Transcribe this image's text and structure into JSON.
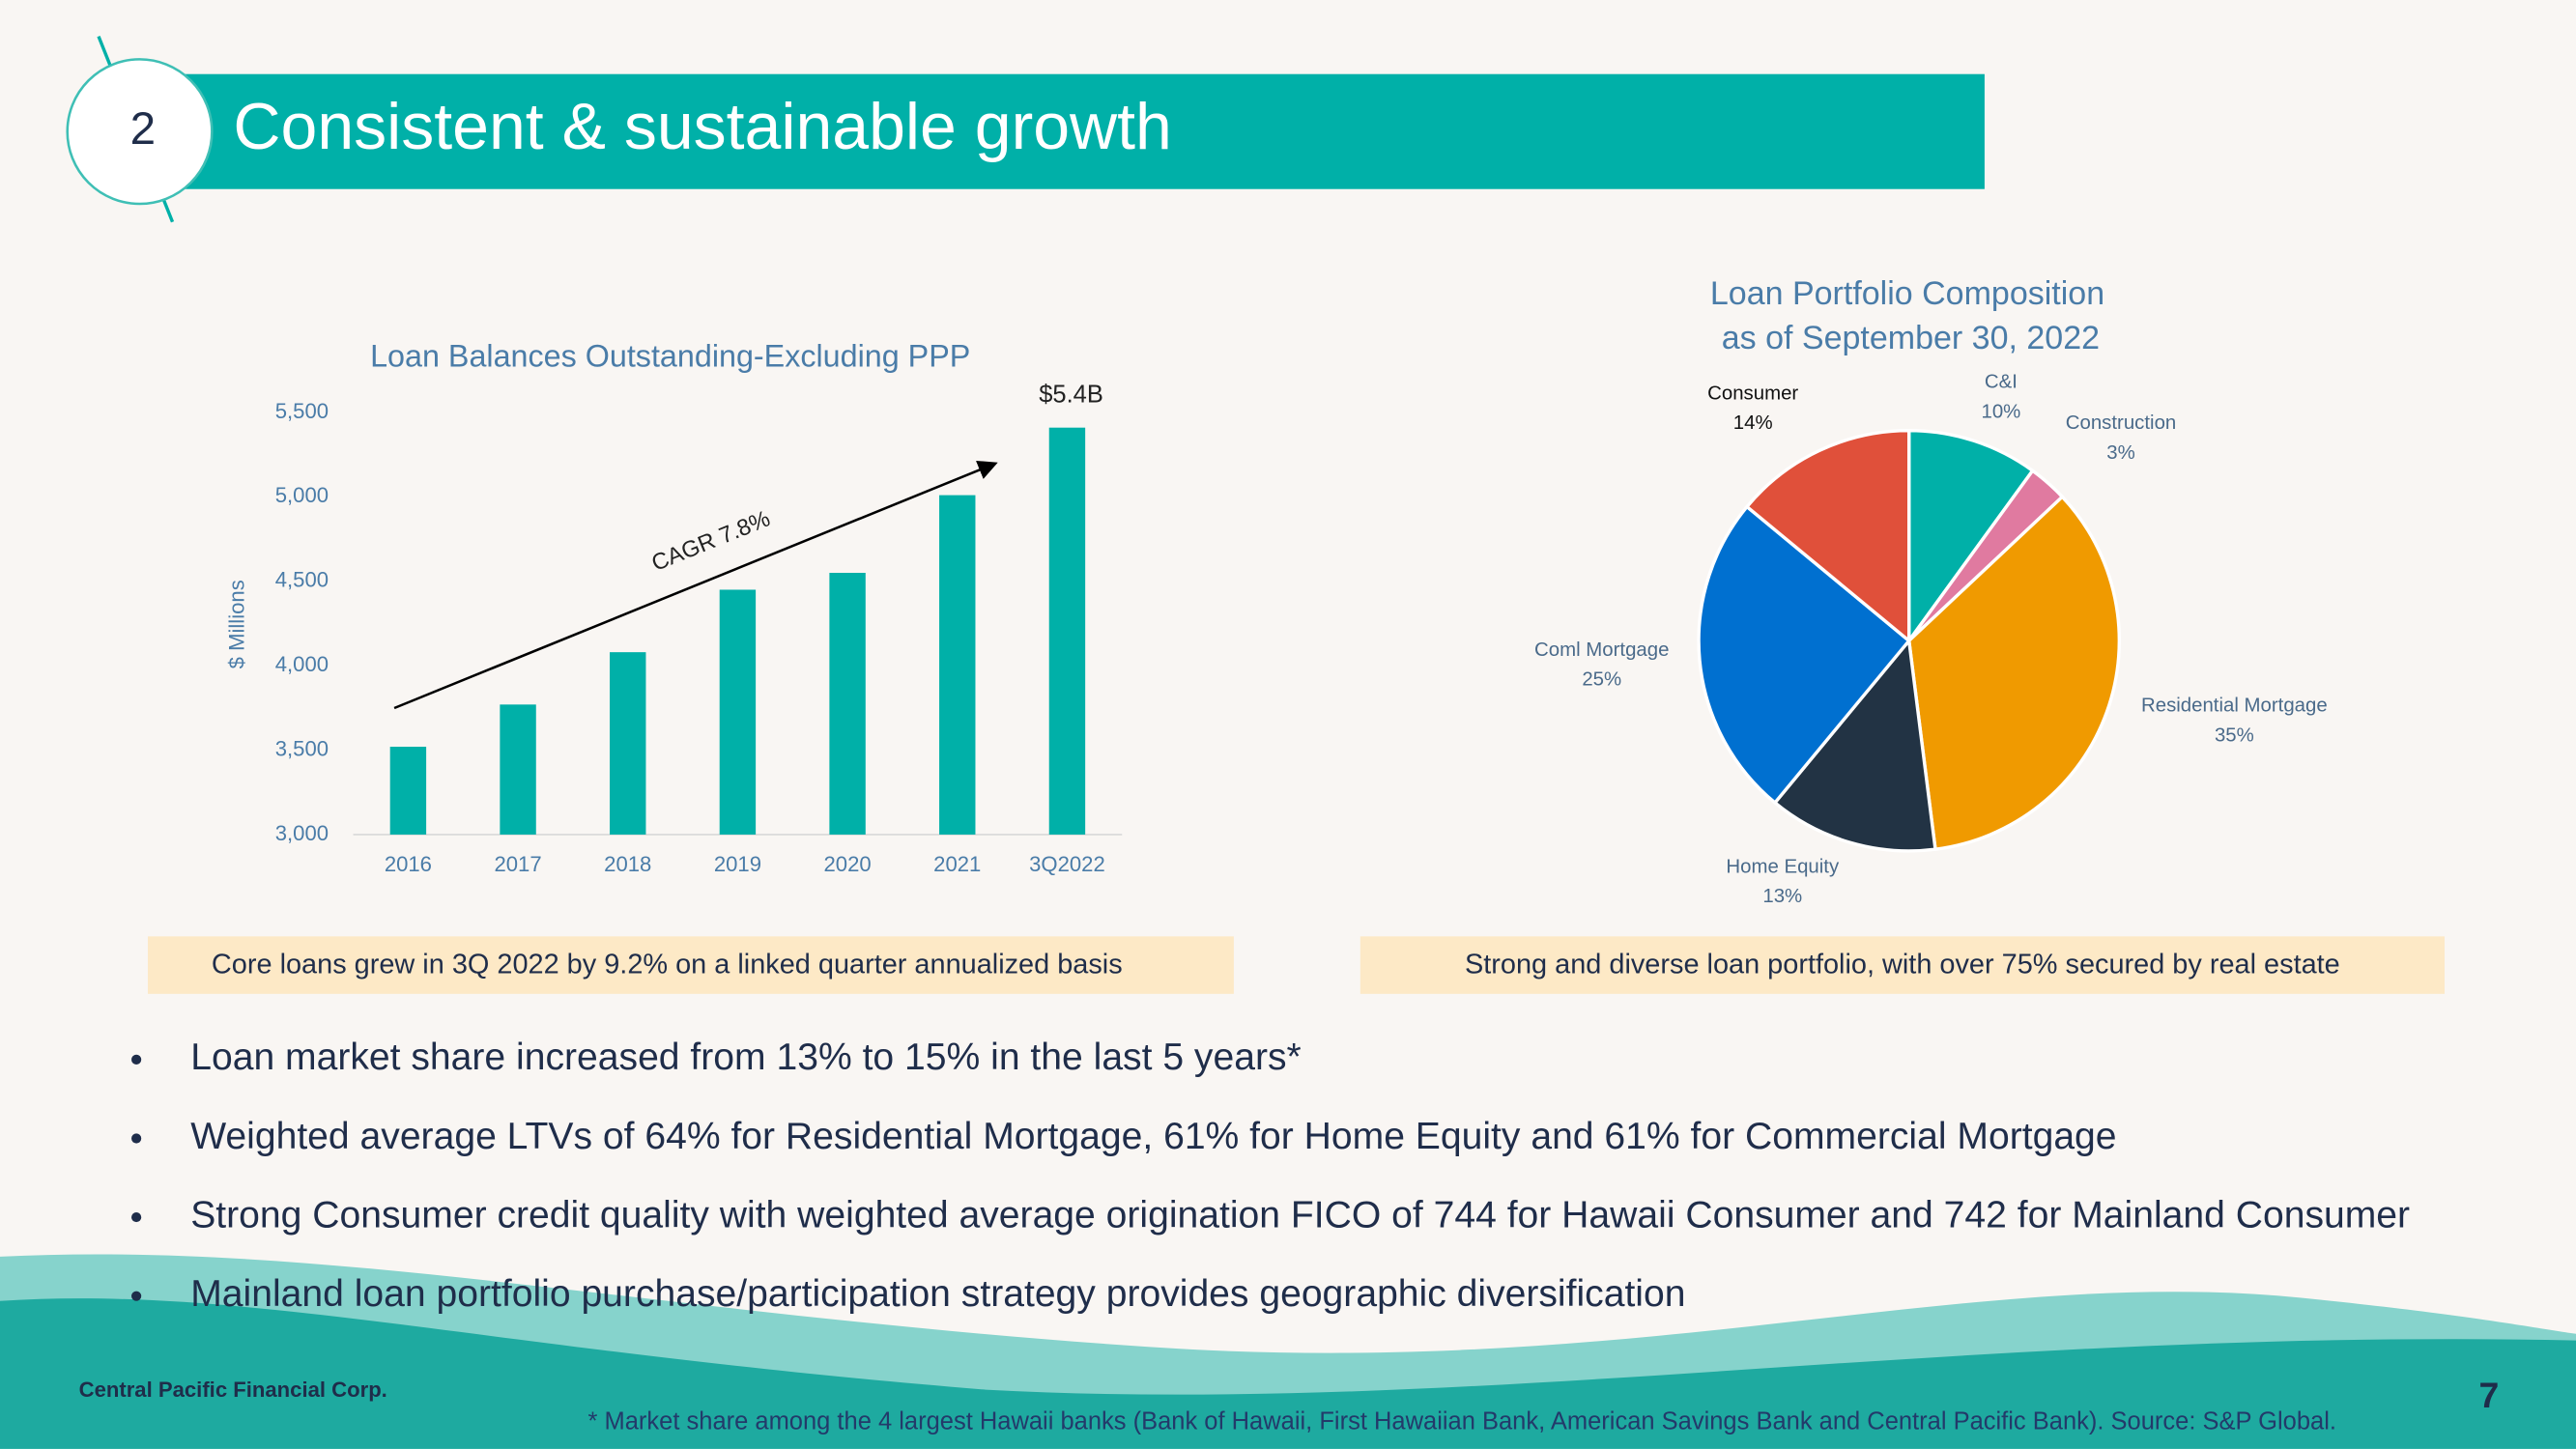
{
  "header": {
    "number": "2",
    "title": "Consistent & sustainable growth"
  },
  "chart_data": [
    {
      "type": "bar",
      "title": "Loan Balances Outstanding-Excluding PPP",
      "y_label": "$ Millions",
      "categories": [
        "2016",
        "2017",
        "2018",
        "2019",
        "2020",
        "2021",
        "3Q2022"
      ],
      "values": [
        3520,
        3770,
        4080,
        4450,
        4550,
        5010,
        5410
      ],
      "color": "#00b0a8",
      "ylim": [
        3000,
        5500
      ],
      "yticks": [
        {
          "value": 3000,
          "label": "3,000"
        },
        {
          "value": 3500,
          "label": "3,500"
        },
        {
          "value": 4000,
          "label": "4,000"
        },
        {
          "value": 4500,
          "label": "4,500"
        },
        {
          "value": 5000,
          "label": "5,000"
        },
        {
          "value": 5500,
          "label": "5,500"
        }
      ],
      "grid": false,
      "annotations": [
        "$5.4B",
        "CAGR 7.8%"
      ]
    },
    {
      "type": "pie",
      "title": "Loan Portfolio Composition",
      "subtitle": "as of September 30, 2022",
      "categories": [
        "C&I",
        "Construction",
        "Residential Mortgage",
        "Home Equity",
        "Coml Mortgage",
        "Consumer"
      ],
      "values": [
        10,
        3,
        35,
        13,
        25,
        14
      ],
      "value_labels": [
        "10%",
        "3%",
        "35%",
        "13%",
        "25%",
        "14%"
      ],
      "colors": [
        "#00b0a8",
        "#e07aa0",
        "#f09a00",
        "#223344",
        "#0070d0",
        "#e0503a"
      ]
    }
  ],
  "callouts": [
    "Core loans grew in 3Q 2022 by 9.2% on a linked quarter annualized basis",
    "Strong and diverse loan portfolio, with over 75% secured by real estate"
  ],
  "bullets": [
    "Loan market share increased from 13% to 15% in the last 5 years*",
    "Weighted average LTVs of 64% for Residential Mortgage, 61% for Home Equity and 61% for Commercial Mortgage",
    "Strong Consumer credit quality with weighted average origination FICO of 744 for Hawaii Consumer and 742 for Mainland Consumer",
    "Mainland loan portfolio purchase/participation strategy provides geographic diversification"
  ],
  "footer": {
    "company": "Central Pacific Financial Corp.",
    "page": "7",
    "footnote": "* Market share among the 4 largest Hawaii banks (Bank of Hawaii, First Hawaiian Bank, American Savings Bank and Central Pacific Bank). Source: S&P Global."
  }
}
